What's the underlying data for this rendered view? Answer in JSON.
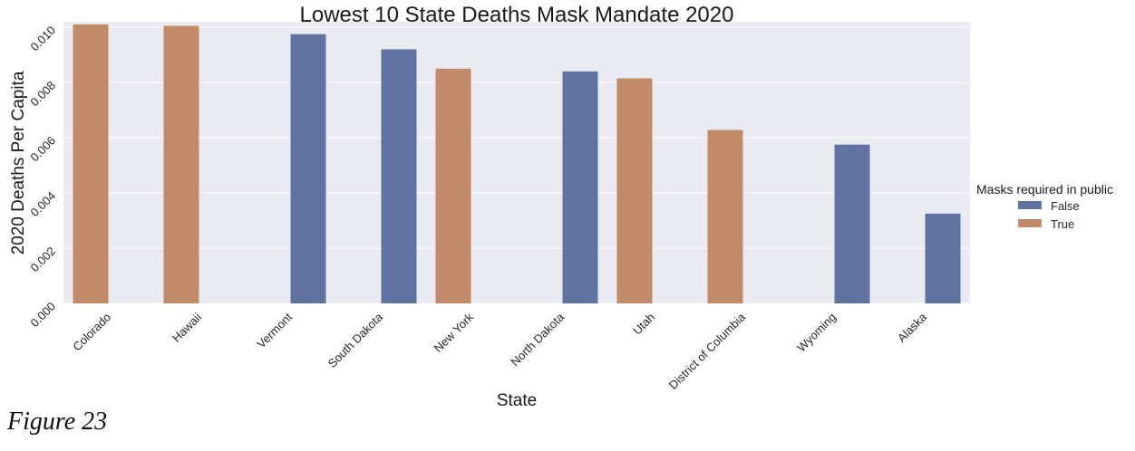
{
  "caption": "Figure 23",
  "chart_data": {
    "type": "bar",
    "title": "Lowest 10 State Deaths Mask Mandate 2020",
    "xlabel": "State",
    "ylabel": "2020 Deaths Per Capita",
    "ylim": [
      0,
      0.0102
    ],
    "yticks": [
      "0.000",
      "0.002",
      "0.004",
      "0.006",
      "0.008",
      "0.010"
    ],
    "grid": true,
    "legend": {
      "title": "Masks required in public",
      "placement": "right",
      "entries": [
        {
          "label": "False",
          "color": "#6073a0"
        },
        {
          "label": "True",
          "color": "#c28b68"
        }
      ]
    },
    "categories": [
      "Colorado",
      "Hawaii",
      "Vermont",
      "South Dakota",
      "New York",
      "North Dakota",
      "Utah",
      "District of Columbia",
      "Wyoming",
      "Alaska"
    ],
    "series": [
      {
        "name": "False",
        "values": [
          null,
          null,
          0.00975,
          0.0092,
          null,
          0.0084,
          null,
          null,
          0.00575,
          0.00325
        ]
      },
      {
        "name": "True",
        "values": [
          0.0101,
          0.01005,
          null,
          null,
          0.0085,
          null,
          0.00815,
          0.00628,
          null,
          null
        ]
      }
    ]
  }
}
